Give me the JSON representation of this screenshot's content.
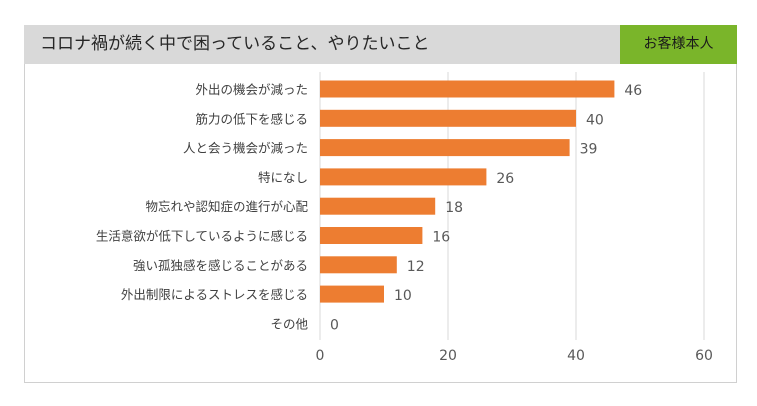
{
  "header": {
    "title": "コロナ禍が続く中で困っていること、やりたいこと",
    "badge": "お客様本人"
  },
  "colors": {
    "bar": "#ed7d31",
    "grid": "#d9d9d9",
    "title_bg": "#d9d9d9",
    "badge_bg": "#7ab52a"
  },
  "chart_data": {
    "type": "bar",
    "orientation": "horizontal",
    "categories": [
      "外出の機会が減った",
      "筋力の低下を感じる",
      "人と会う機会が減った",
      "特になし",
      "物忘れや認知症の進行が心配",
      "生活意欲が低下しているように感じる",
      "強い孤独感を感じることがある",
      "外出制限によるストレスを感じる",
      "その他"
    ],
    "values": [
      46,
      40,
      39,
      26,
      18,
      16,
      12,
      10,
      0
    ],
    "xlim": [
      0,
      60
    ],
    "xticks": [
      0,
      20,
      40,
      60
    ],
    "grid": true,
    "data_labels": true
  }
}
